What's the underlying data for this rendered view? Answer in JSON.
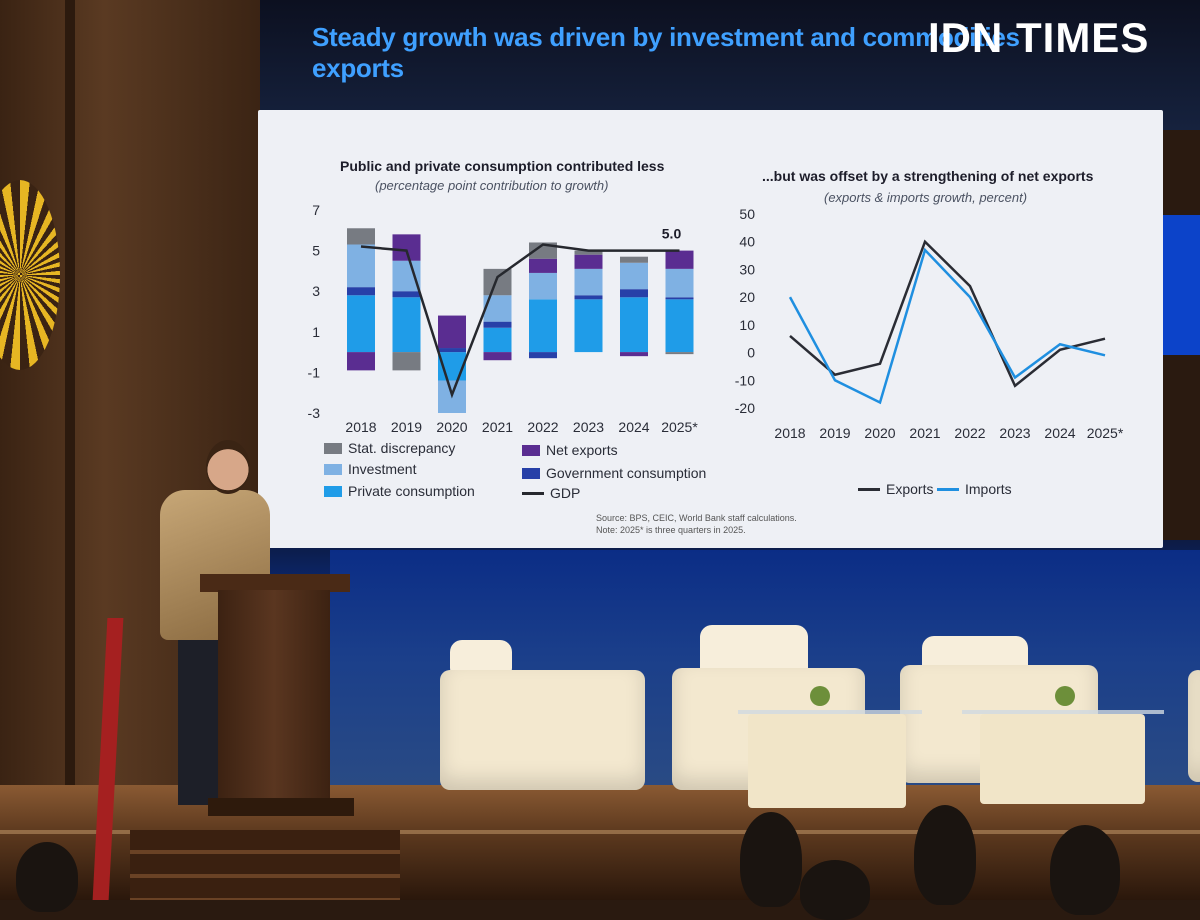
{
  "watermark": "IDN TIMES",
  "slide": {
    "title": "Steady growth was driven by investment and commodities exports",
    "source_line1": "Source: BPS, CEIC, World Bank staff calculations.",
    "source_line2": "Note: 2025* is three quarters in 2025."
  },
  "chart_data": [
    {
      "type": "bar",
      "stacked": true,
      "title": "Public and private consumption contributed less",
      "subtitle": "(percentage point contribution to growth)",
      "categories": [
        "2018",
        "2019",
        "2020",
        "2021",
        "2022",
        "2023",
        "2024",
        "2025*"
      ],
      "yticks": [
        "7",
        "5",
        "3",
        "1",
        "-1",
        "-3"
      ],
      "ylim": [
        -3,
        7
      ],
      "series": [
        {
          "name": "Private consumption",
          "color": "#1f9ce8",
          "values": [
            2.8,
            2.7,
            -1.4,
            1.2,
            2.6,
            2.6,
            2.7,
            2.6
          ]
        },
        {
          "name": "Government consumption",
          "color": "#2740a8",
          "values": [
            0.4,
            0.3,
            0.2,
            0.3,
            -0.3,
            0.2,
            0.4,
            0.1
          ]
        },
        {
          "name": "Investment",
          "color": "#7fb1e3",
          "values": [
            2.1,
            1.5,
            -1.6,
            1.3,
            1.3,
            1.3,
            1.3,
            1.4
          ]
        },
        {
          "name": "Net exports",
          "color": "#5a2d91",
          "values": [
            -0.9,
            1.3,
            1.6,
            -0.4,
            0.7,
            0.7,
            -0.2,
            0.9
          ]
        },
        {
          "name": "Stat. discrepancy",
          "color": "#777b82",
          "values": [
            0.8,
            -0.9,
            0.0,
            1.3,
            0.8,
            0.2,
            0.3,
            -0.1
          ]
        }
      ],
      "line": {
        "name": "GDP",
        "color": "#26282e",
        "values": [
          5.2,
          5.0,
          -2.1,
          3.7,
          5.3,
          5.0,
          5.0,
          5.0
        ]
      },
      "annotation": "5.0"
    },
    {
      "type": "line",
      "title": "...but was offset by  a strengthening of net exports",
      "subtitle": "(exports & imports growth, percent)",
      "categories": [
        "2018",
        "2019",
        "2020",
        "2021",
        "2022",
        "2023",
        "2024",
        "2025*"
      ],
      "yticks": [
        "50",
        "40",
        "30",
        "20",
        "10",
        "0",
        "-10",
        "-20"
      ],
      "ylim": [
        -20,
        50
      ],
      "series": [
        {
          "name": "Exports",
          "color": "#2a2c34",
          "values": [
            6,
            -8,
            -4,
            40,
            24,
            -12,
            1,
            5
          ]
        },
        {
          "name": "Imports",
          "color": "#1f8fe0",
          "values": [
            20,
            -10,
            -18,
            37,
            20,
            -9,
            3,
            -1
          ]
        }
      ]
    }
  ]
}
